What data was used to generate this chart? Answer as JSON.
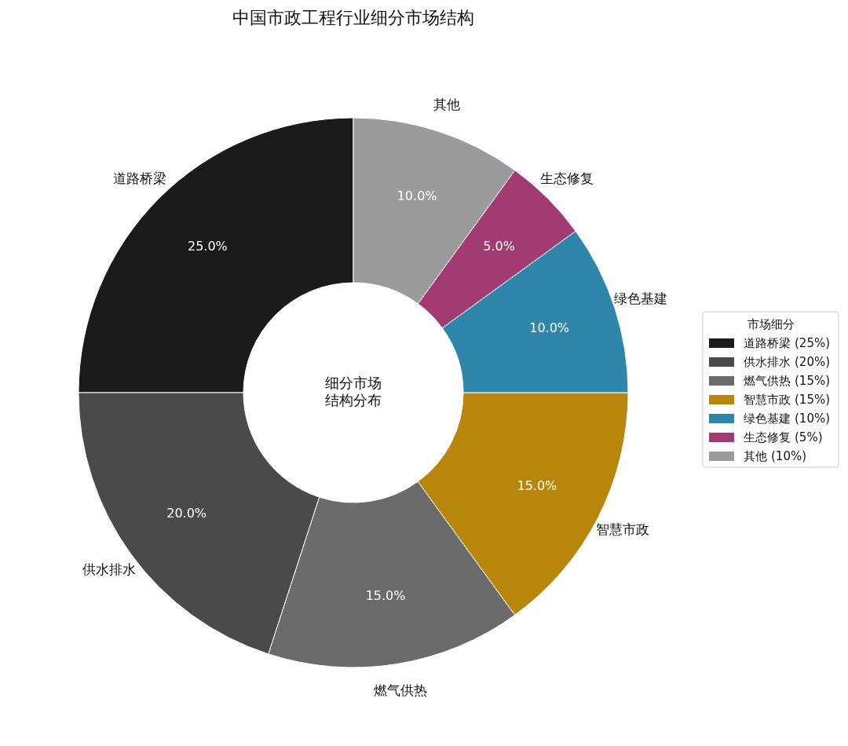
{
  "chart_data": {
    "type": "donut",
    "title": "中国市政工程行业细分市场结构",
    "categories": [
      "道路桥梁",
      "供水排水",
      "燃气供热",
      "智慧市政",
      "绿色基建",
      "生态修复",
      "其他"
    ],
    "values": [
      25,
      20,
      15,
      15,
      10,
      5,
      10
    ],
    "colors": [
      "#1a1a1a",
      "#4a4a4a",
      "#6b6b6b",
      "#b8860b",
      "#2e86ab",
      "#a23b72",
      "#9b9b9b"
    ],
    "value_labels": [
      "25.0%",
      "20.0%",
      "15.0%",
      "15.0%",
      "10.0%",
      "5.0%",
      "10.0%"
    ],
    "legend_title": "市场细分",
    "legend": "right",
    "annotations": [
      "细分市场结构分布",
      "(25%)",
      "(20%)",
      "(15%)",
      "(15%)",
      "(10%)",
      "(5%)",
      "(10%)"
    ]
  }
}
